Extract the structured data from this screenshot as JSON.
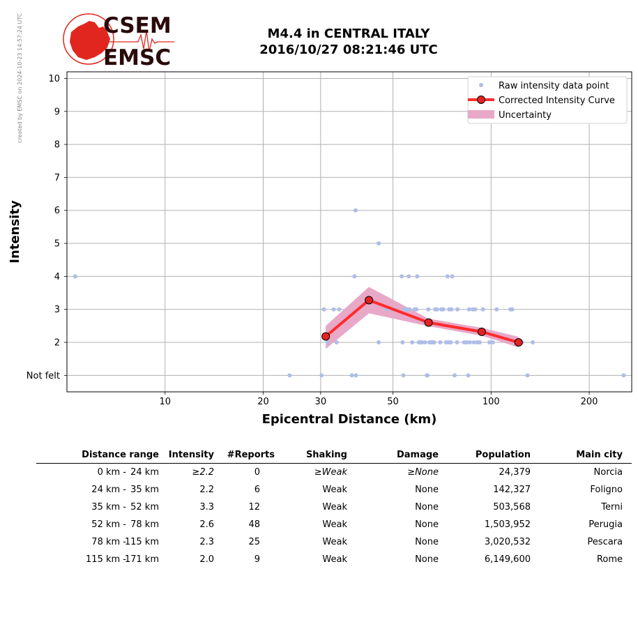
{
  "watermark": "created by EMSC on 2024-10-23 14:57:24 UTC",
  "logo": {
    "line1": "CSEM",
    "line2": "EMSC"
  },
  "title": {
    "line1": "M4.4 in CENTRAL ITALY",
    "line2": "2016/10/27 08:21:46 UTC"
  },
  "colors": {
    "raw_points": "#aebde8",
    "curve": "#ff2b2b",
    "marker_fill": "#e32222",
    "uncertainty": "#e8a8c8",
    "logo_red": "#e0261f"
  },
  "chart_data": {
    "type": "scatter",
    "xlabel": "Epicentral Distance (km)",
    "ylabel": "Intensity",
    "x_scale": "log",
    "xlim": [
      5,
      270
    ],
    "ylim": [
      0.5,
      10.2
    ],
    "x_ticks": [
      10,
      20,
      30,
      50,
      100,
      200
    ],
    "y_ticks": [
      {
        "value": 1,
        "label": "Not felt"
      },
      {
        "value": 2,
        "label": "2"
      },
      {
        "value": 3,
        "label": "3"
      },
      {
        "value": 4,
        "label": "4"
      },
      {
        "value": 5,
        "label": "5"
      },
      {
        "value": 6,
        "label": "6"
      },
      {
        "value": 7,
        "label": "7"
      },
      {
        "value": 8,
        "label": "8"
      },
      {
        "value": 9,
        "label": "9"
      },
      {
        "value": 10,
        "label": "10"
      }
    ],
    "grid": true,
    "legend": {
      "placement": "top-right",
      "entries": [
        "Raw intensity data point",
        "Corrected Intensity Curve",
        "Uncertainty"
      ]
    },
    "series": [
      {
        "name": "Raw intensity data point",
        "kind": "scatter",
        "points": [
          [
            5.3,
            4
          ],
          [
            24.1,
            1
          ],
          [
            30.2,
            1
          ],
          [
            30.7,
            3
          ],
          [
            31.5,
            2
          ],
          [
            32.9,
            3
          ],
          [
            33.6,
            2
          ],
          [
            34.2,
            3
          ],
          [
            37.4,
            1
          ],
          [
            38.1,
            4
          ],
          [
            38.4,
            6
          ],
          [
            38.5,
            1
          ],
          [
            45.2,
            5
          ],
          [
            45.2,
            2
          ],
          [
            48,
            3
          ],
          [
            50,
            3
          ],
          [
            51,
            3
          ],
          [
            53.2,
            4
          ],
          [
            53.5,
            2
          ],
          [
            53.8,
            1
          ],
          [
            54.2,
            3
          ],
          [
            54.7,
            3
          ],
          [
            55.3,
            3
          ],
          [
            55.9,
            4
          ],
          [
            56.2,
            3
          ],
          [
            57.3,
            2
          ],
          [
            58.3,
            3
          ],
          [
            59,
            3
          ],
          [
            59.3,
            4
          ],
          [
            60,
            2
          ],
          [
            60.7,
            2
          ],
          [
            61.5,
            2
          ],
          [
            62.8,
            2
          ],
          [
            63.5,
            1
          ],
          [
            63.8,
            1
          ],
          [
            64.2,
            3
          ],
          [
            64.7,
            2
          ],
          [
            65.3,
            2
          ],
          [
            66.1,
            2
          ],
          [
            66.9,
            2
          ],
          [
            67.4,
            3
          ],
          [
            68.3,
            3
          ],
          [
            69.8,
            2
          ],
          [
            70.4,
            3
          ],
          [
            71.3,
            3
          ],
          [
            72.8,
            2
          ],
          [
            73.5,
            4
          ],
          [
            74,
            2
          ],
          [
            74.4,
            3
          ],
          [
            75.2,
            2
          ],
          [
            75.6,
            3
          ],
          [
            76,
            4
          ],
          [
            77.3,
            1
          ],
          [
            78.6,
            2
          ],
          [
            78.8,
            3
          ],
          [
            82.6,
            2
          ],
          [
            84.2,
            2
          ],
          [
            85.1,
            1
          ],
          [
            85.6,
            3
          ],
          [
            86.1,
            2
          ],
          [
            87.8,
            3
          ],
          [
            88.5,
            2
          ],
          [
            89.4,
            3
          ],
          [
            90.6,
            2
          ],
          [
            92.2,
            2
          ],
          [
            94.4,
            3
          ],
          [
            98.8,
            2
          ],
          [
            101.3,
            2
          ],
          [
            104,
            3
          ],
          [
            114.7,
            3
          ],
          [
            116.1,
            3
          ],
          [
            124.4,
            2
          ],
          [
            129.3,
            1
          ],
          [
            134.2,
            2
          ],
          [
            255.1,
            1
          ]
        ]
      },
      {
        "name": "Corrected Intensity Curve",
        "kind": "line",
        "points": [
          [
            31.1,
            2.18
          ],
          [
            42.2,
            3.28
          ],
          [
            64.3,
            2.6
          ],
          [
            93.6,
            2.32
          ],
          [
            121.4,
            2.0
          ]
        ]
      },
      {
        "name": "Uncertainty",
        "kind": "band",
        "x": [
          31.1,
          42.2,
          64.3,
          93.6,
          121.4
        ],
        "upper": [
          2.5,
          3.68,
          2.72,
          2.44,
          2.17
        ],
        "lower": [
          1.8,
          2.88,
          2.49,
          2.2,
          1.85
        ]
      }
    ]
  },
  "table": {
    "headers": [
      "Distance range",
      "Intensity",
      "#Reports",
      "Shaking",
      "Damage",
      "Population",
      "Main city"
    ],
    "rows": [
      {
        "range_from": "0 km -",
        "range_to": "24 km",
        "intensity": "≥2.2",
        "reports": "0",
        "shaking": "≥Weak",
        "damage": "≥None",
        "population": "24,379",
        "city": "Norcia",
        "italic": true
      },
      {
        "range_from": "24 km -",
        "range_to": "35 km",
        "intensity": "2.2",
        "reports": "6",
        "shaking": "Weak",
        "damage": "None",
        "population": "142,327",
        "city": "Foligno",
        "italic": false
      },
      {
        "range_from": "35 km -",
        "range_to": "52 km",
        "intensity": "3.3",
        "reports": "12",
        "shaking": "Weak",
        "damage": "None",
        "population": "503,568",
        "city": "Terni",
        "italic": false
      },
      {
        "range_from": "52 km -",
        "range_to": "78 km",
        "intensity": "2.6",
        "reports": "48",
        "shaking": "Weak",
        "damage": "None",
        "population": "1,503,952",
        "city": "Perugia",
        "italic": false
      },
      {
        "range_from": "78 km -",
        "range_to": "115 km",
        "intensity": "2.3",
        "reports": "25",
        "shaking": "Weak",
        "damage": "None",
        "population": "3,020,532",
        "city": "Pescara",
        "italic": false
      },
      {
        "range_from": "115 km -",
        "range_to": "171 km",
        "intensity": "2.0",
        "reports": "9",
        "shaking": "Weak",
        "damage": "None",
        "population": "6,149,600",
        "city": "Rome",
        "italic": false
      }
    ]
  }
}
